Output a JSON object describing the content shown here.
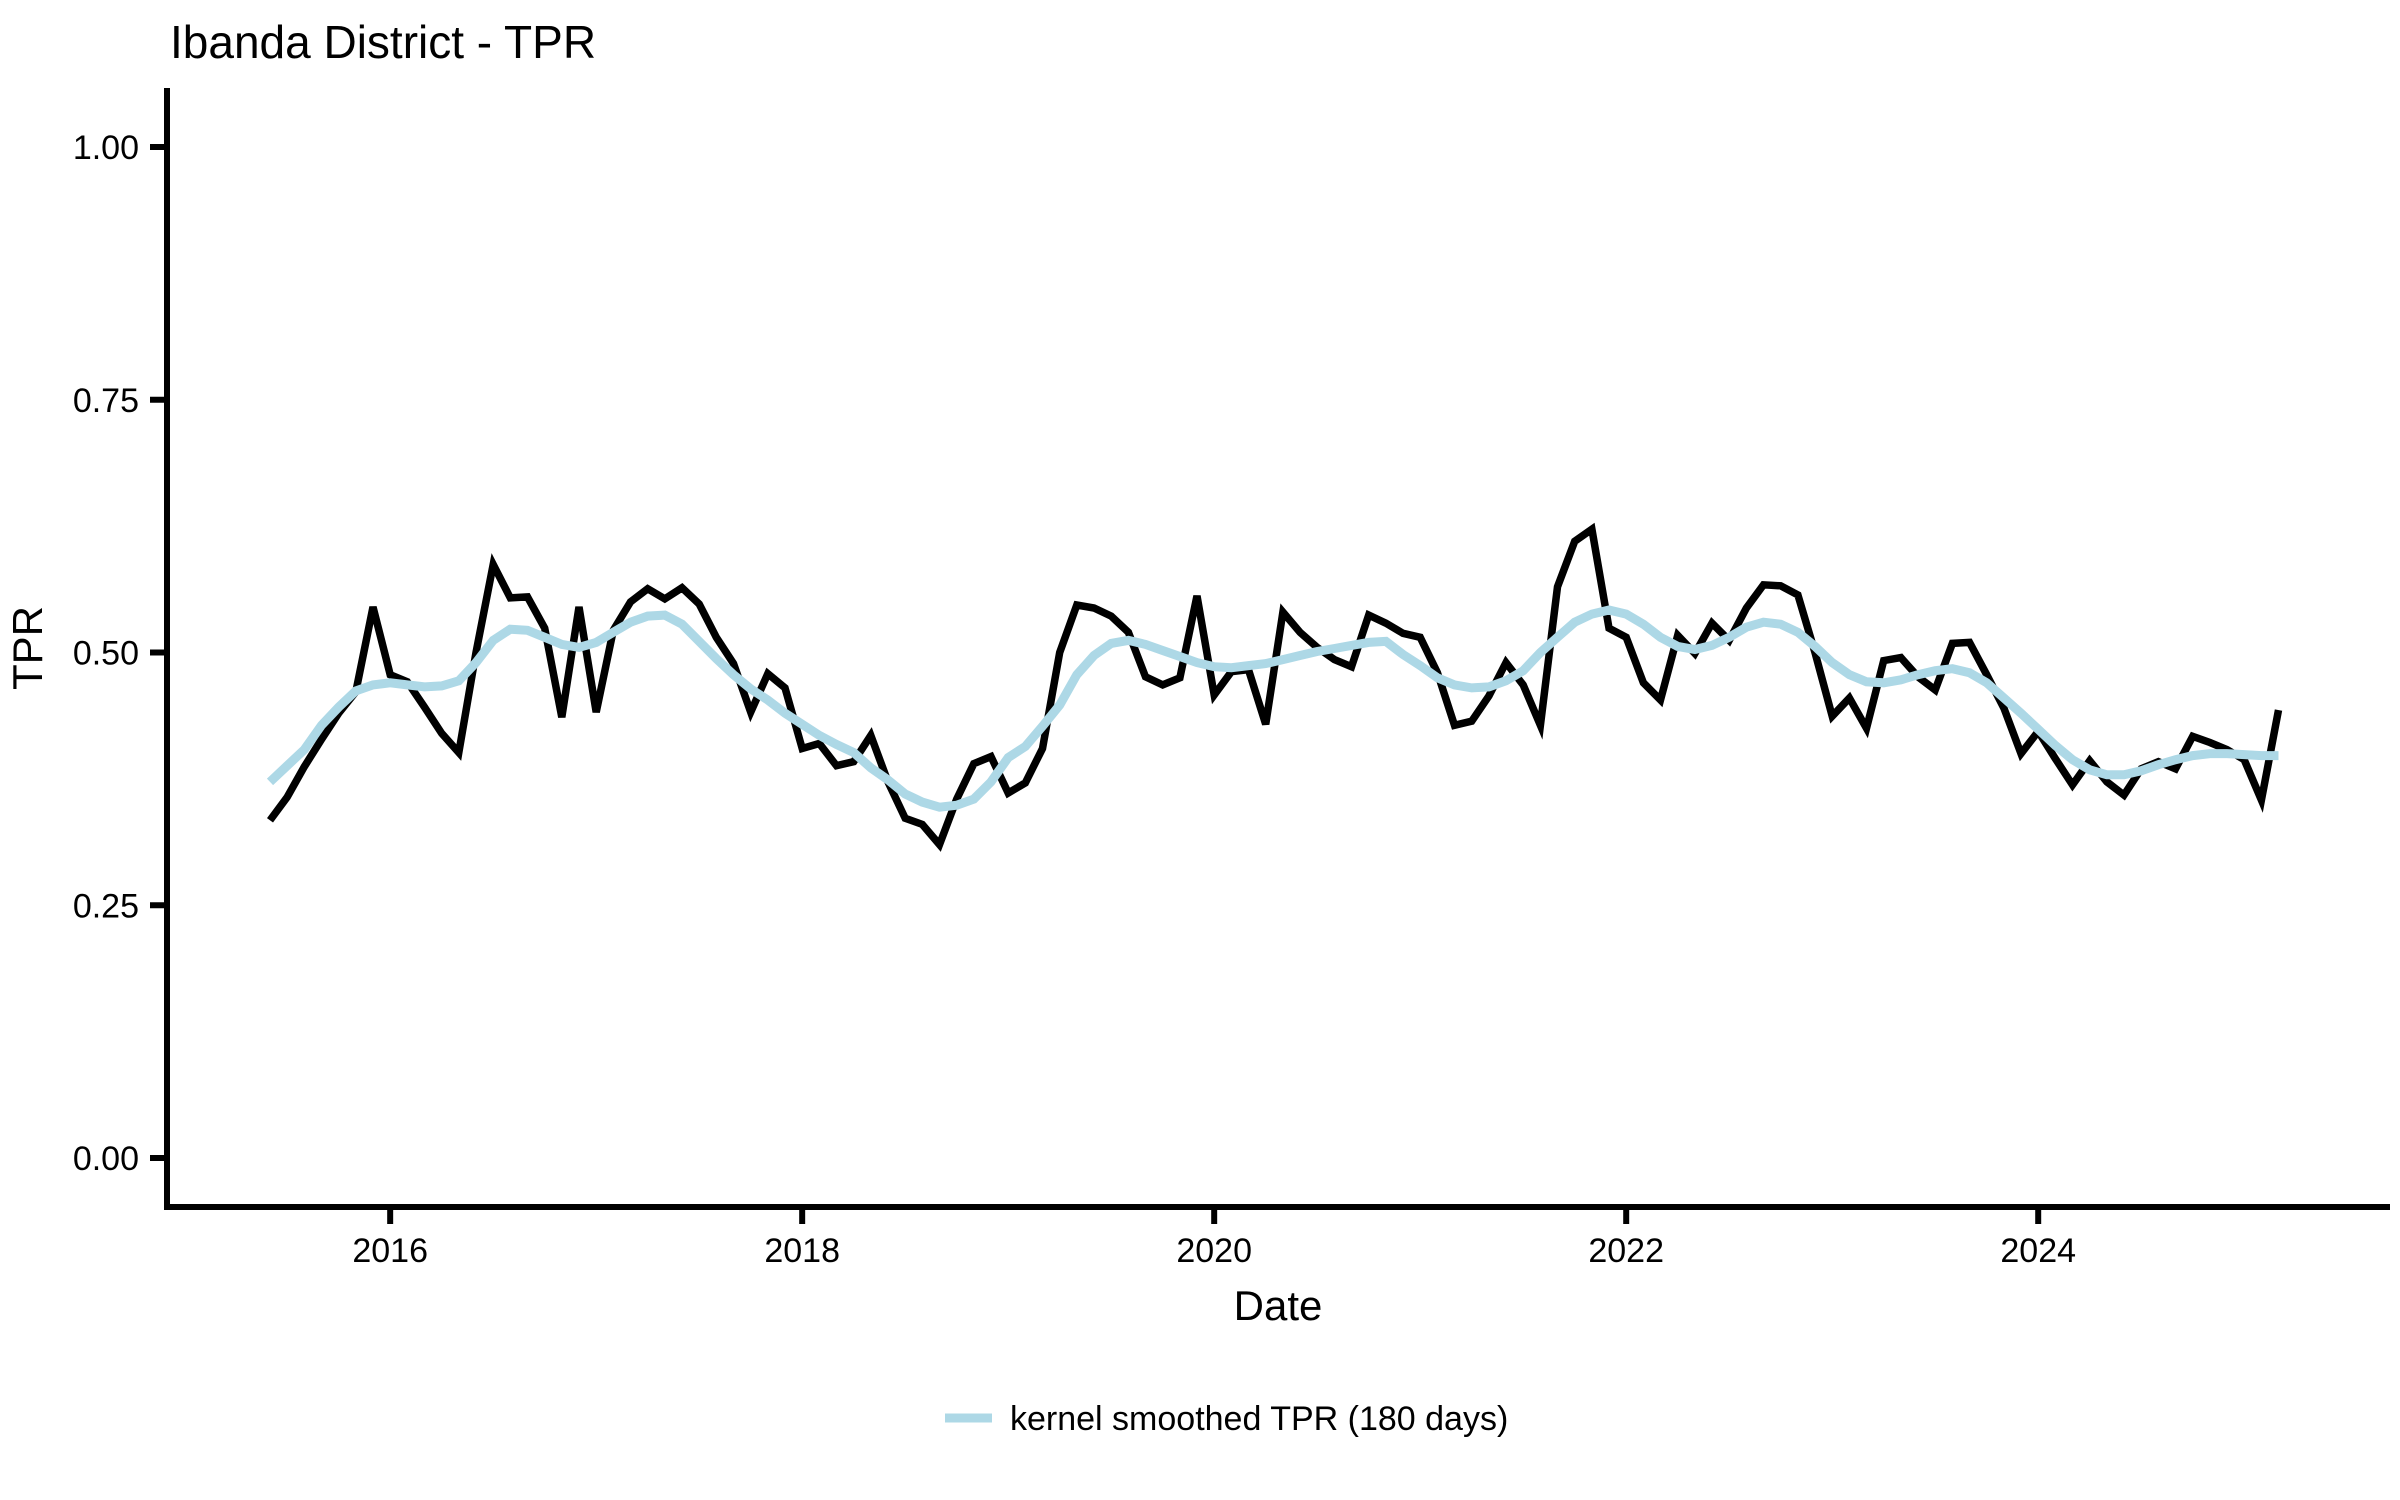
{
  "chart": {
    "title": "Ibanda District - TPR",
    "x_axis": {
      "title": "Date",
      "tick_labels": [
        "2016",
        "2018",
        "2020",
        "2022",
        "2024"
      ]
    },
    "y_axis": {
      "title": "TPR",
      "tick_labels": [
        "0.00",
        "0.25",
        "0.50",
        "0.75",
        "1.00"
      ]
    },
    "legend": {
      "label": "kernel smoothed TPR (180 days)",
      "swatch_color": "#add8e6"
    }
  },
  "chart_data": {
    "type": "line",
    "title": "Ibanda District - TPR",
    "xlabel": "Date",
    "ylabel": "TPR",
    "x_start": "2015-06",
    "x_interval": "monthly",
    "n_points": 118,
    "x_tick_years": [
      2016,
      2018,
      2020,
      2022,
      2024
    ],
    "ylim": [
      0,
      1
    ],
    "y_ticks": [
      0,
      0.25,
      0.5,
      0.75,
      1
    ],
    "grid": false,
    "axis_theme": "classic",
    "legend_position": "bottom",
    "series": [
      {
        "name": "TPR",
        "color": "#000000",
        "width": 7.5,
        "values": [
          0.334,
          0.357,
          0.387,
          0.414,
          0.44,
          0.461,
          0.545,
          0.478,
          0.471,
          0.446,
          0.42,
          0.401,
          0.5,
          0.587,
          0.554,
          0.555,
          0.524,
          0.436,
          0.545,
          0.441,
          0.522,
          0.55,
          0.563,
          0.553,
          0.564,
          0.548,
          0.515,
          0.489,
          0.441,
          0.479,
          0.465,
          0.405,
          0.41,
          0.388,
          0.392,
          0.418,
          0.372,
          0.336,
          0.33,
          0.31,
          0.355,
          0.39,
          0.397,
          0.361,
          0.371,
          0.405,
          0.5,
          0.547,
          0.544,
          0.536,
          0.52,
          0.476,
          0.468,
          0.475,
          0.556,
          0.458,
          0.481,
          0.483,
          0.429,
          0.54,
          0.52,
          0.505,
          0.493,
          0.486,
          0.537,
          0.529,
          0.519,
          0.515,
          0.48,
          0.428,
          0.432,
          0.457,
          0.49,
          0.468,
          0.428,
          0.565,
          0.61,
          0.622,
          0.524,
          0.515,
          0.47,
          0.453,
          0.517,
          0.499,
          0.529,
          0.512,
          0.544,
          0.567,
          0.566,
          0.557,
          0.5,
          0.437,
          0.455,
          0.425,
          0.492,
          0.495,
          0.476,
          0.463,
          0.509,
          0.51,
          0.478,
          0.445,
          0.4,
          0.422,
          0.395,
          0.369,
          0.393,
          0.372,
          0.359,
          0.385,
          0.392,
          0.385,
          0.417,
          0.411,
          0.404,
          0.394,
          0.354,
          0.443
        ]
      },
      {
        "name": "kernel smoothed TPR (180 days)",
        "color": "#add8e6",
        "width": 9,
        "values": [
          0.372,
          0.388,
          0.404,
          0.428,
          0.446,
          0.462,
          0.468,
          0.47,
          0.468,
          0.466,
          0.467,
          0.472,
          0.49,
          0.512,
          0.523,
          0.522,
          0.515,
          0.508,
          0.505,
          0.51,
          0.52,
          0.53,
          0.536,
          0.537,
          0.528,
          0.511,
          0.494,
          0.478,
          0.464,
          0.453,
          0.44,
          0.429,
          0.418,
          0.409,
          0.401,
          0.386,
          0.374,
          0.36,
          0.352,
          0.347,
          0.349,
          0.355,
          0.372,
          0.396,
          0.407,
          0.427,
          0.448,
          0.478,
          0.497,
          0.509,
          0.512,
          0.508,
          0.502,
          0.496,
          0.49,
          0.486,
          0.485,
          0.487,
          0.489,
          0.493,
          0.497,
          0.501,
          0.504,
          0.507,
          0.51,
          0.511,
          0.498,
          0.487,
          0.475,
          0.468,
          0.465,
          0.466,
          0.472,
          0.482,
          0.5,
          0.515,
          0.53,
          0.538,
          0.542,
          0.538,
          0.528,
          0.515,
          0.506,
          0.503,
          0.507,
          0.515,
          0.525,
          0.53,
          0.528,
          0.52,
          0.506,
          0.49,
          0.478,
          0.471,
          0.47,
          0.473,
          0.478,
          0.482,
          0.484,
          0.48,
          0.47,
          0.455,
          0.44,
          0.424,
          0.408,
          0.394,
          0.384,
          0.379,
          0.379,
          0.383,
          0.389,
          0.394,
          0.398,
          0.4,
          0.4,
          0.399,
          0.398,
          0.398
        ]
      }
    ]
  }
}
